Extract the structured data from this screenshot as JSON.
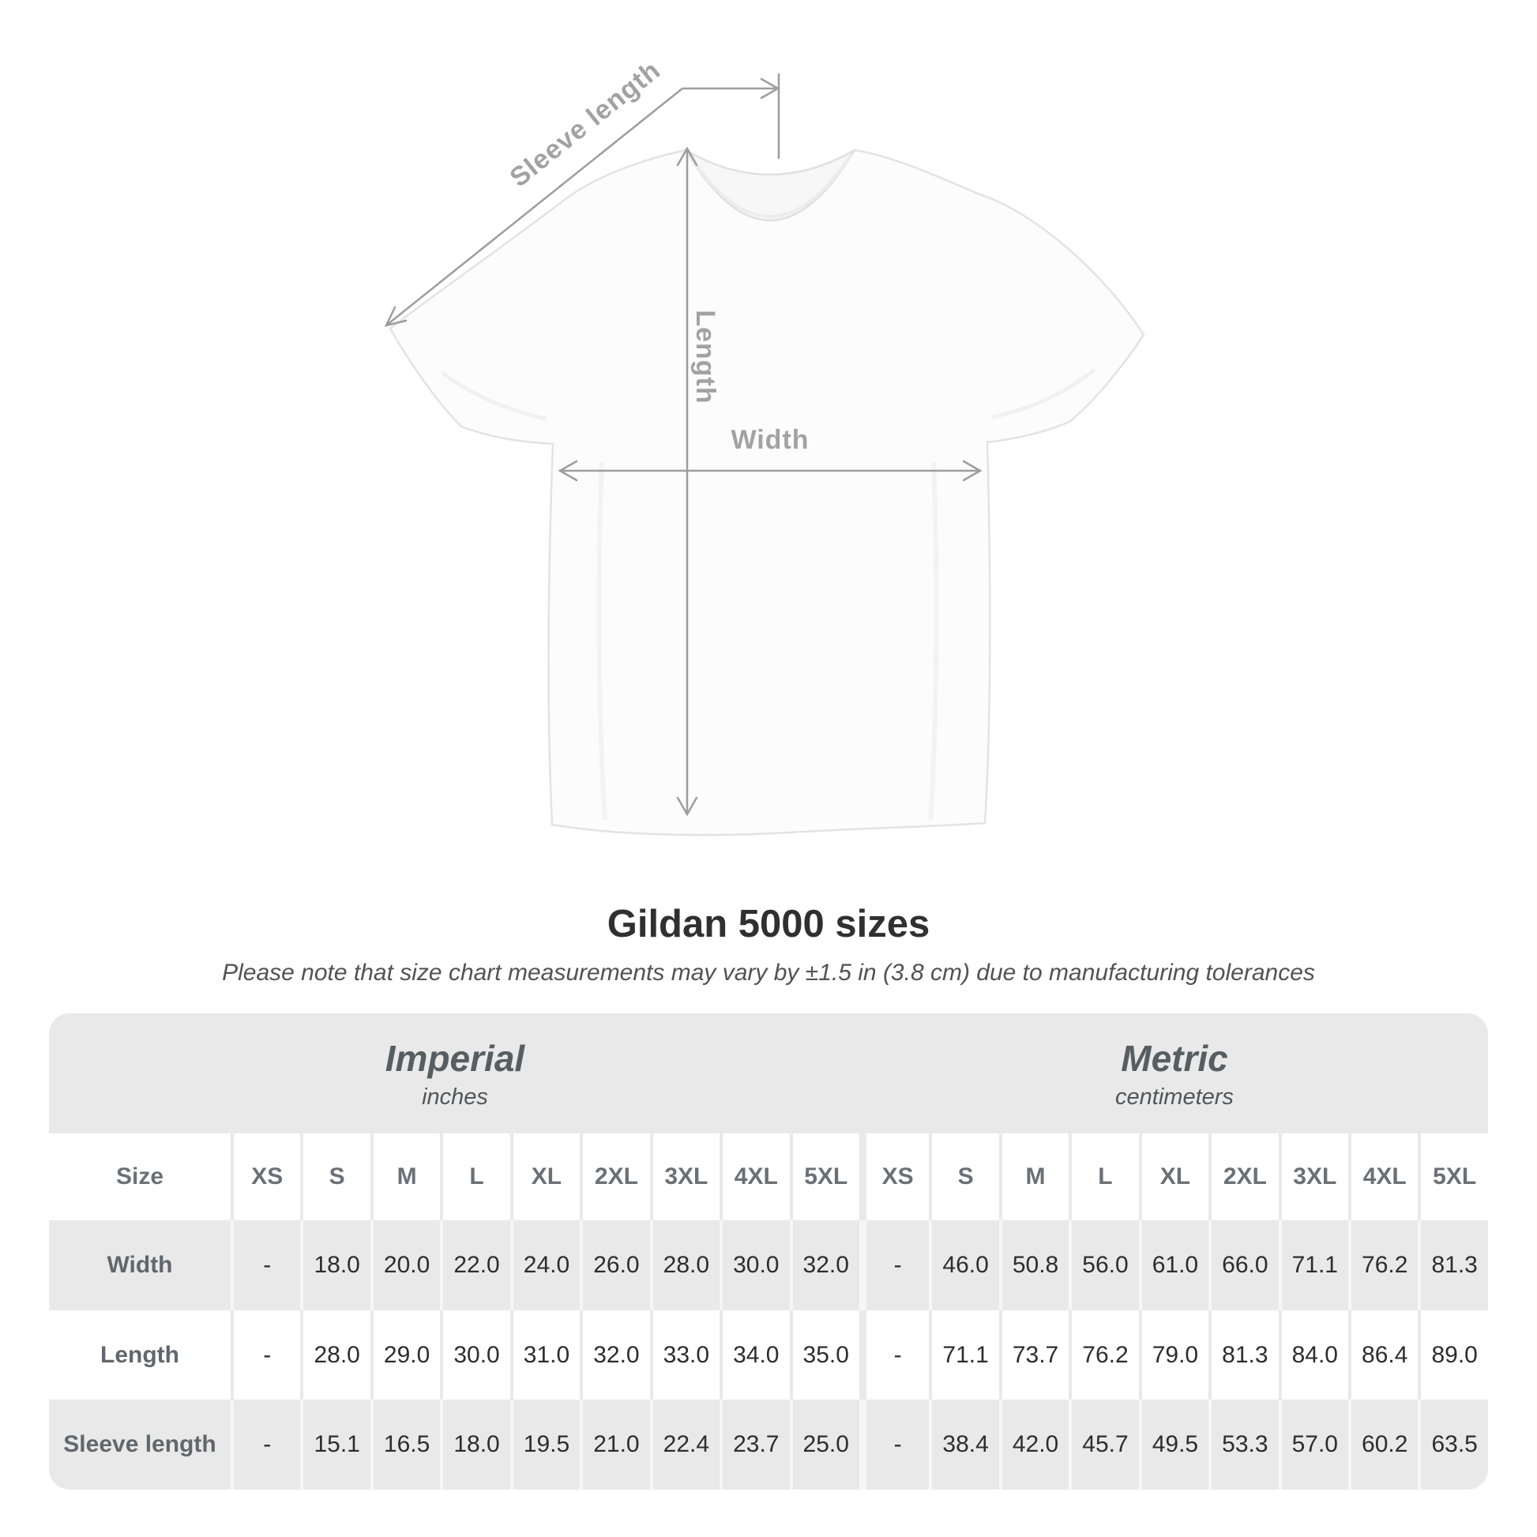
{
  "diagram": {
    "sleeve_length_label": "Sleeve length",
    "length_label": "Length",
    "width_label": "Width"
  },
  "header": {
    "title": "Gildan 5000 sizes",
    "subtitle": "Please note that size chart measurements may vary by ±1.5 in (3.8 cm) due to manufacturing tolerances"
  },
  "size_table": {
    "corner_label": "Size",
    "groups": [
      {
        "label": "Imperial",
        "unit": "inches"
      },
      {
        "label": "Metric",
        "unit": "centimeters"
      }
    ],
    "sizes": [
      "XS",
      "S",
      "M",
      "L",
      "XL",
      "2XL",
      "3XL",
      "4XL",
      "5XL"
    ],
    "rows": [
      {
        "label": "Width",
        "imperial": [
          "-",
          "18.0",
          "20.0",
          "22.0",
          "24.0",
          "26.0",
          "28.0",
          "30.0",
          "32.0"
        ],
        "metric": [
          "-",
          "46.0",
          "50.8",
          "56.0",
          "61.0",
          "66.0",
          "71.1",
          "76.2",
          "81.3"
        ]
      },
      {
        "label": "Length",
        "imperial": [
          "-",
          "28.0",
          "29.0",
          "30.0",
          "31.0",
          "32.0",
          "33.0",
          "34.0",
          "35.0"
        ],
        "metric": [
          "-",
          "71.1",
          "73.7",
          "76.2",
          "79.0",
          "81.3",
          "84.0",
          "86.4",
          "89.0"
        ]
      },
      {
        "label": "Sleeve length",
        "imperial": [
          "-",
          "15.1",
          "16.5",
          "18.0",
          "19.5",
          "21.0",
          "22.4",
          "23.7",
          "25.0"
        ],
        "metric": [
          "-",
          "38.4",
          "42.0",
          "45.7",
          "49.5",
          "53.3",
          "57.0",
          "60.2",
          "63.5"
        ]
      }
    ]
  },
  "chart_data": {
    "type": "table",
    "title": "Gildan 5000 sizes",
    "note": "Please note that size chart measurements may vary by ±1.5 in (3.8 cm) due to manufacturing tolerances",
    "column_groups": [
      "Imperial (inches)",
      "Metric (centimeters)"
    ],
    "columns": [
      "Size",
      "XS",
      "S",
      "M",
      "L",
      "XL",
      "2XL",
      "3XL",
      "4XL",
      "5XL",
      "XS",
      "S",
      "M",
      "L",
      "XL",
      "2XL",
      "3XL",
      "4XL",
      "5XL"
    ],
    "rows": [
      [
        "Width",
        null,
        18.0,
        20.0,
        22.0,
        24.0,
        26.0,
        28.0,
        30.0,
        32.0,
        null,
        46.0,
        50.8,
        56.0,
        61.0,
        66.0,
        71.1,
        76.2,
        81.3
      ],
      [
        "Length",
        null,
        28.0,
        29.0,
        30.0,
        31.0,
        32.0,
        33.0,
        34.0,
        35.0,
        null,
        71.1,
        73.7,
        76.2,
        79.0,
        81.3,
        84.0,
        86.4,
        89.0
      ],
      [
        "Sleeve length",
        null,
        15.1,
        16.5,
        18.0,
        19.5,
        21.0,
        22.4,
        23.7,
        25.0,
        null,
        38.4,
        42.0,
        45.7,
        49.5,
        53.3,
        57.0,
        60.2,
        63.5
      ]
    ]
  },
  "colors": {
    "table_bg": "#e9e9e9",
    "row_white": "#ffffff",
    "divider_on_gray": "#f6f6f6",
    "title_text": "#303030",
    "muted_text": "#6a7075",
    "number_text": "#2d2d2d",
    "arrow": "#9d9d9d",
    "diagram_label": "#a2a2a2"
  }
}
